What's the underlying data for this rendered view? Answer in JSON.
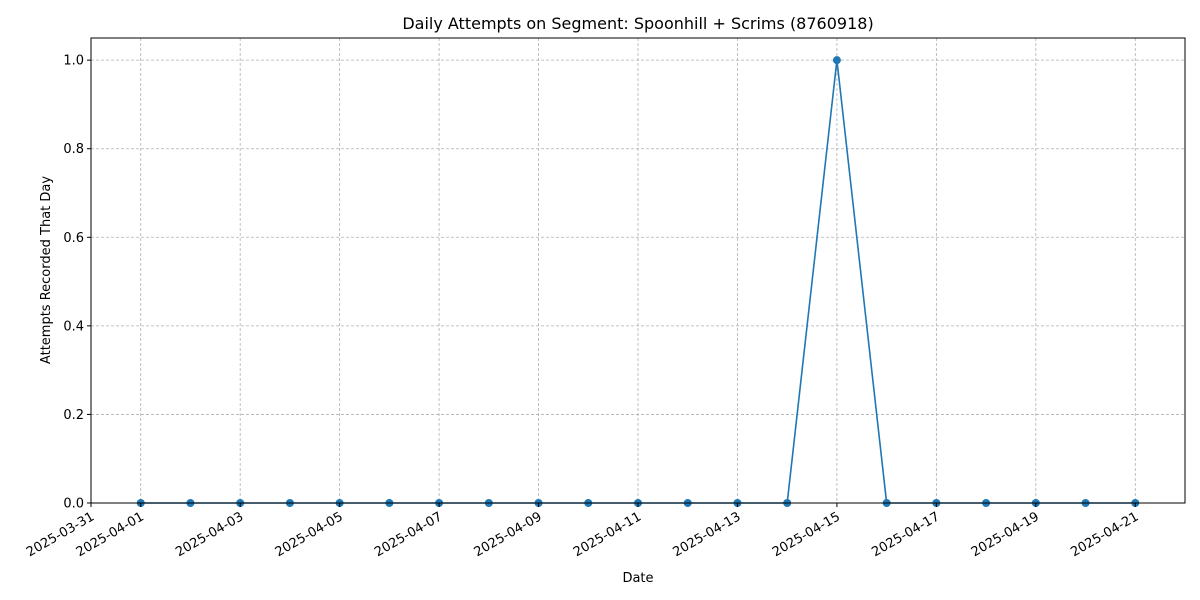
{
  "chart_data": {
    "type": "line",
    "title": "Daily Attempts on Segment: Spoonhill + Scrims (8760918)",
    "xlabel": "Date",
    "ylabel": "Attempts Recorded That Day",
    "x_tick_labels": [
      "2025-03-31",
      "2025-04-01",
      "2025-04-03",
      "2025-04-05",
      "2025-04-07",
      "2025-04-09",
      "2025-04-11",
      "2025-04-13",
      "2025-04-15",
      "2025-04-17",
      "2025-04-19",
      "2025-04-21"
    ],
    "y_tick_labels": [
      "0.0",
      "0.2",
      "0.4",
      "0.6",
      "0.8",
      "1.0"
    ],
    "ylim": [
      0,
      1.05
    ],
    "xlim": [
      "2025-03-31",
      "2025-04-22"
    ],
    "grid": true,
    "color": "#1f77b4",
    "series": [
      {
        "x": [
          "2025-04-01",
          "2025-04-02",
          "2025-04-03",
          "2025-04-04",
          "2025-04-05",
          "2025-04-06",
          "2025-04-07",
          "2025-04-08",
          "2025-04-09",
          "2025-04-10",
          "2025-04-11",
          "2025-04-12",
          "2025-04-13",
          "2025-04-14",
          "2025-04-15",
          "2025-04-16",
          "2025-04-17",
          "2025-04-18",
          "2025-04-19",
          "2025-04-20",
          "2025-04-21"
        ],
        "values": [
          0,
          0,
          0,
          0,
          0,
          0,
          0,
          0,
          0,
          0,
          0,
          0,
          0,
          0,
          1,
          0,
          0,
          0,
          0,
          0,
          0
        ]
      }
    ]
  }
}
